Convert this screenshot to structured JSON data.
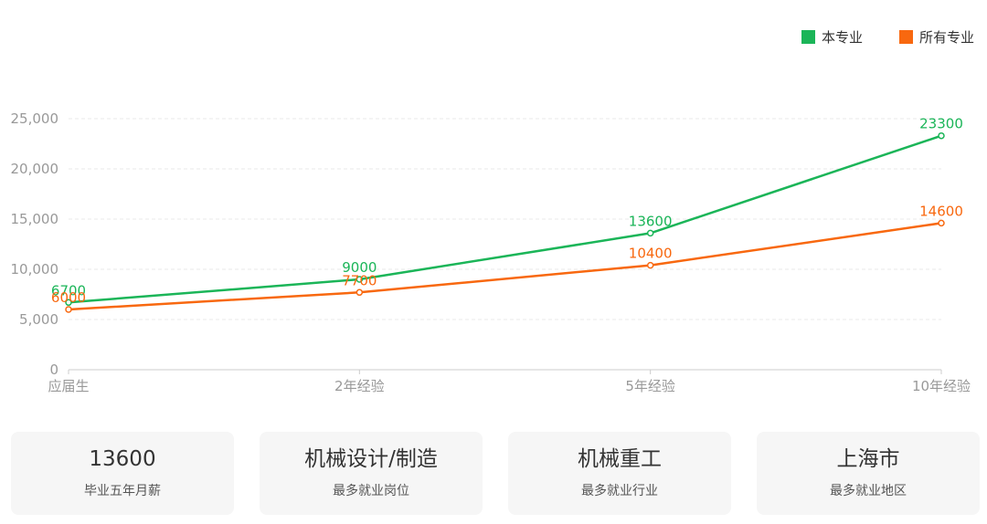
{
  "legend": {
    "items": [
      {
        "label": "本专业",
        "color": "#1bb558"
      },
      {
        "label": "所有专业",
        "color": "#f8680f"
      }
    ]
  },
  "chart_data": {
    "type": "line",
    "categories": [
      "应届生",
      "2年经验",
      "5年经验",
      "10年经验"
    ],
    "series": [
      {
        "name": "本专业",
        "color": "#1bb558",
        "values": [
          6700,
          9000,
          13600,
          23300
        ]
      },
      {
        "name": "所有专业",
        "color": "#f8680f",
        "values": [
          6000,
          7700,
          10400,
          14600
        ]
      }
    ],
    "data_labels": {
      "本专业": [
        "6700",
        "9000",
        "13600",
        "23300"
      ],
      "所有专业": [
        "6000",
        "7700",
        "10400",
        "14600"
      ]
    },
    "y_ticks": [
      0,
      5000,
      10000,
      15000,
      20000,
      25000
    ],
    "y_tick_labels": [
      "0",
      "5,000",
      "10,000",
      "15,000",
      "20,000",
      "25,000"
    ],
    "ylim": [
      0,
      25000
    ],
    "grid": true,
    "legend_position": "top-right"
  },
  "cards": [
    {
      "value": "13600",
      "label": "毕业五年月薪"
    },
    {
      "value": "机械设计/制造",
      "label": "最多就业岗位"
    },
    {
      "value": "机械重工",
      "label": "最多就业行业"
    },
    {
      "value": "上海市",
      "label": "最多就业地区"
    }
  ]
}
